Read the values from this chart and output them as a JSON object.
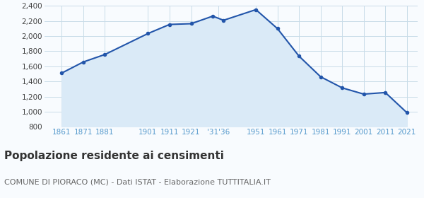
{
  "years": [
    1861,
    1871,
    1881,
    1901,
    1911,
    1921,
    1931,
    1936,
    1951,
    1961,
    1971,
    1981,
    1991,
    2001,
    2011,
    2021
  ],
  "population": [
    1511,
    1658,
    1757,
    2035,
    2155,
    2165,
    2265,
    2210,
    2351,
    2100,
    1735,
    1462,
    1315,
    1232,
    1253,
    987
  ],
  "ylim": [
    800,
    2400
  ],
  "yticks": [
    800,
    1000,
    1200,
    1400,
    1600,
    1800,
    2000,
    2200,
    2400
  ],
  "xtick_positions": [
    1861,
    1871,
    1881,
    1901,
    1911,
    1921,
    1933.5,
    1951,
    1961,
    1971,
    1981,
    1991,
    2001,
    2011,
    2021
  ],
  "xtick_labels": [
    "1861",
    "1871",
    "1881",
    "1901",
    "1911",
    "1921",
    "'31'36",
    "1951",
    "1961",
    "1971",
    "1981",
    "1991",
    "2001",
    "2011",
    "2021"
  ],
  "line_color": "#2255aa",
  "fill_color": "#daeaf7",
  "marker_color": "#2255aa",
  "grid_color": "#c8dce8",
  "background_color": "#f8fbfe",
  "title": "Popolazione residente ai censimenti",
  "subtitle": "COMUNE DI PIORACO (MC) - Dati ISTAT - Elaborazione TUTTITALIA.IT",
  "title_fontsize": 11,
  "subtitle_fontsize": 8,
  "axis_label_color": "#5599cc",
  "tick_fontsize": 7.5,
  "ytick_fontsize": 7.5,
  "xlim": [
    1853,
    2026
  ]
}
